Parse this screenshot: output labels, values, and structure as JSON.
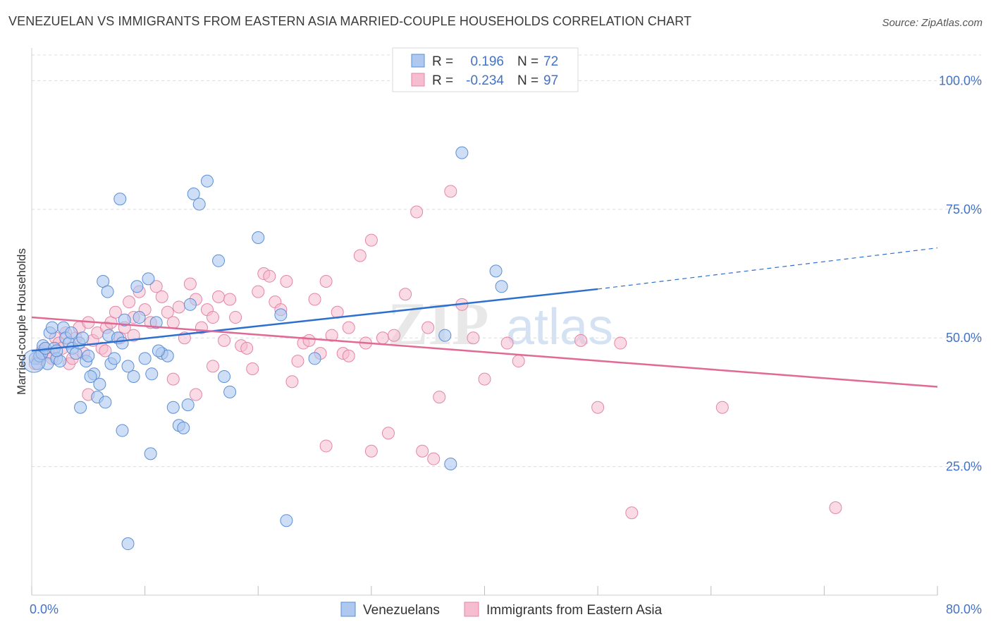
{
  "header": {
    "title": "VENEZUELAN VS IMMIGRANTS FROM EASTERN ASIA MARRIED-COUPLE HOUSEHOLDS CORRELATION CHART",
    "source": "Source: ZipAtlas.com"
  },
  "watermark": {
    "zip": "ZIP",
    "atlas": "atlas"
  },
  "chart_data": {
    "type": "scatter",
    "title": "VENEZUELAN VS IMMIGRANTS FROM EASTERN ASIA MARRIED-COUPLE HOUSEHOLDS CORRELATION CHART",
    "xlabel": "",
    "ylabel": "Married-couple Households",
    "xlim": [
      0,
      80
    ],
    "ylim": [
      0,
      105
    ],
    "x_tick_labels": [
      "0.0%",
      "80.0%"
    ],
    "y_ticks": [
      25,
      50,
      75,
      100
    ],
    "y_tick_labels": [
      "25.0%",
      "50.0%",
      "75.0%",
      "100.0%"
    ],
    "grid": "horizontal-dashed",
    "legend_top": {
      "rows": [
        {
          "r_label": "R =",
          "r_value": "0.196",
          "n_label": "N =",
          "n_value": "72"
        },
        {
          "r_label": "R =",
          "r_value": "-0.234",
          "n_label": "N =",
          "n_value": "97"
        }
      ]
    },
    "colors": {
      "venezuelans_fill": "#aec8f0",
      "venezuelans_stroke": "#5b8fd6",
      "venezuelans_line": "#2c6fcf",
      "asia_fill": "#f6bccf",
      "asia_stroke": "#e386a6",
      "asia_line": "#e06a95",
      "tick_text": "#4472c4"
    },
    "series": [
      {
        "name": "Venezuelans",
        "trend": {
          "x": [
            0,
            50
          ],
          "y": [
            47.5,
            59.5
          ],
          "dashed_to": [
            80,
            67.5
          ]
        },
        "points": [
          [
            0.3,
            46
          ],
          [
            0.5,
            45
          ],
          [
            0.7,
            46.5
          ],
          [
            0.9,
            47
          ],
          [
            1.0,
            48.5
          ],
          [
            1.2,
            48
          ],
          [
            1.4,
            45
          ],
          [
            1.6,
            51
          ],
          [
            1.8,
            52
          ],
          [
            2.0,
            48
          ],
          [
            2.2,
            46
          ],
          [
            2.5,
            45.5
          ],
          [
            2.8,
            52
          ],
          [
            3.0,
            50
          ],
          [
            3.3,
            49
          ],
          [
            3.6,
            48
          ],
          [
            3.9,
            47
          ],
          [
            4.2,
            49
          ],
          [
            4.5,
            50
          ],
          [
            4.8,
            45.5
          ],
          [
            5.0,
            46.5
          ],
          [
            5.5,
            43
          ],
          [
            5.8,
            38.5
          ],
          [
            6.0,
            41
          ],
          [
            6.5,
            37.5
          ],
          [
            4.3,
            36.5
          ],
          [
            6.8,
            50.5
          ],
          [
            7.0,
            45
          ],
          [
            7.3,
            46
          ],
          [
            6.3,
            61
          ],
          [
            6.7,
            59
          ],
          [
            7.6,
            50
          ],
          [
            8.0,
            49
          ],
          [
            8.2,
            53.5
          ],
          [
            8.5,
            44.5
          ],
          [
            9.0,
            42.5
          ],
          [
            9.3,
            60
          ],
          [
            9.5,
            54
          ],
          [
            10.0,
            46
          ],
          [
            10.3,
            61.5
          ],
          [
            10.6,
            43
          ],
          [
            11.0,
            53
          ],
          [
            11.5,
            47
          ],
          [
            12.0,
            46.5
          ],
          [
            12.5,
            36.5
          ],
          [
            13.0,
            33
          ],
          [
            13.4,
            32.5
          ],
          [
            13.8,
            37
          ],
          [
            14.0,
            56.5
          ],
          [
            14.3,
            78
          ],
          [
            14.8,
            76
          ],
          [
            15.5,
            80.5
          ],
          [
            16.5,
            65
          ],
          [
            17.0,
            42.5
          ],
          [
            17.5,
            39.5
          ],
          [
            20.0,
            69.5
          ],
          [
            22.0,
            54.5
          ],
          [
            22.5,
            14.5
          ],
          [
            8.0,
            32
          ],
          [
            10.5,
            27.5
          ],
          [
            11.2,
            47.5
          ],
          [
            7.8,
            77
          ],
          [
            8.5,
            10
          ],
          [
            25.0,
            46
          ],
          [
            36.5,
            50.5
          ],
          [
            37.0,
            25.5
          ],
          [
            38.0,
            86
          ],
          [
            41.0,
            63
          ],
          [
            41.5,
            60
          ],
          [
            2.2,
            47.5
          ],
          [
            3.5,
            51
          ],
          [
            5.2,
            42.5
          ]
        ]
      },
      {
        "name": "Immigrants from Eastern Asia",
        "trend": {
          "x": [
            0,
            80
          ],
          "y": [
            54,
            40.5
          ]
        },
        "points": [
          [
            0.3,
            45
          ],
          [
            0.6,
            46
          ],
          [
            0.9,
            47.5
          ],
          [
            1.2,
            48
          ],
          [
            1.5,
            47
          ],
          [
            1.8,
            46
          ],
          [
            2.1,
            50
          ],
          [
            2.4,
            49
          ],
          [
            2.7,
            48
          ],
          [
            3.0,
            51
          ],
          [
            3.3,
            45
          ],
          [
            3.6,
            46
          ],
          [
            3.9,
            50
          ],
          [
            4.2,
            52
          ],
          [
            4.6,
            47
          ],
          [
            5.0,
            53
          ],
          [
            5.4,
            49.5
          ],
          [
            5.8,
            51
          ],
          [
            6.2,
            48
          ],
          [
            6.6,
            52
          ],
          [
            7.0,
            53
          ],
          [
            7.4,
            55
          ],
          [
            7.8,
            50
          ],
          [
            8.2,
            52
          ],
          [
            8.6,
            57
          ],
          [
            9.0,
            54
          ],
          [
            9.5,
            59
          ],
          [
            10.0,
            55.5
          ],
          [
            10.5,
            53
          ],
          [
            11.0,
            60
          ],
          [
            11.5,
            58
          ],
          [
            12.0,
            55
          ],
          [
            12.5,
            53
          ],
          [
            13.0,
            56
          ],
          [
            13.5,
            50
          ],
          [
            14.0,
            60.5
          ],
          [
            14.5,
            57.5
          ],
          [
            15.0,
            52
          ],
          [
            15.5,
            55.5
          ],
          [
            16.0,
            54
          ],
          [
            16.5,
            58
          ],
          [
            17.0,
            49.5
          ],
          [
            17.5,
            57.5
          ],
          [
            18.0,
            54
          ],
          [
            18.5,
            48.5
          ],
          [
            19.0,
            48
          ],
          [
            19.5,
            44
          ],
          [
            20.0,
            59
          ],
          [
            20.5,
            62.5
          ],
          [
            21.0,
            62
          ],
          [
            21.5,
            57
          ],
          [
            22.0,
            55.5
          ],
          [
            22.5,
            61
          ],
          [
            23.0,
            41.5
          ],
          [
            23.5,
            45.5
          ],
          [
            24.0,
            49
          ],
          [
            24.5,
            49.5
          ],
          [
            25.0,
            57.5
          ],
          [
            25.5,
            47
          ],
          [
            26.0,
            61
          ],
          [
            26.5,
            50.5
          ],
          [
            27.0,
            55
          ],
          [
            27.5,
            47
          ],
          [
            28.0,
            46.5
          ],
          [
            29.0,
            66
          ],
          [
            29.5,
            49
          ],
          [
            30.0,
            69
          ],
          [
            31.0,
            50
          ],
          [
            31.5,
            31.5
          ],
          [
            32.0,
            50.5
          ],
          [
            33.0,
            58.5
          ],
          [
            34.0,
            74.5
          ],
          [
            34.5,
            28
          ],
          [
            35.5,
            26.5
          ],
          [
            36.0,
            38.5
          ],
          [
            37.0,
            78.5
          ],
          [
            38.0,
            56.5
          ],
          [
            39.0,
            50
          ],
          [
            40.0,
            42
          ],
          [
            42.0,
            49
          ],
          [
            43.0,
            45.5
          ],
          [
            48.5,
            49.5
          ],
          [
            50.0,
            36.5
          ],
          [
            53.0,
            16
          ],
          [
            61.0,
            36.5
          ],
          [
            71.0,
            17
          ],
          [
            5.0,
            39
          ],
          [
            6.5,
            47.5
          ],
          [
            9.0,
            50.5
          ],
          [
            12.5,
            42
          ],
          [
            14.5,
            39
          ],
          [
            16.0,
            44.5
          ],
          [
            26.0,
            29
          ],
          [
            30.0,
            28
          ],
          [
            28.0,
            52
          ],
          [
            35.0,
            52
          ],
          [
            52.0,
            49
          ]
        ]
      }
    ]
  },
  "legend_bottom": {
    "items": [
      "Venezuelans",
      "Immigrants from Eastern Asia"
    ]
  }
}
